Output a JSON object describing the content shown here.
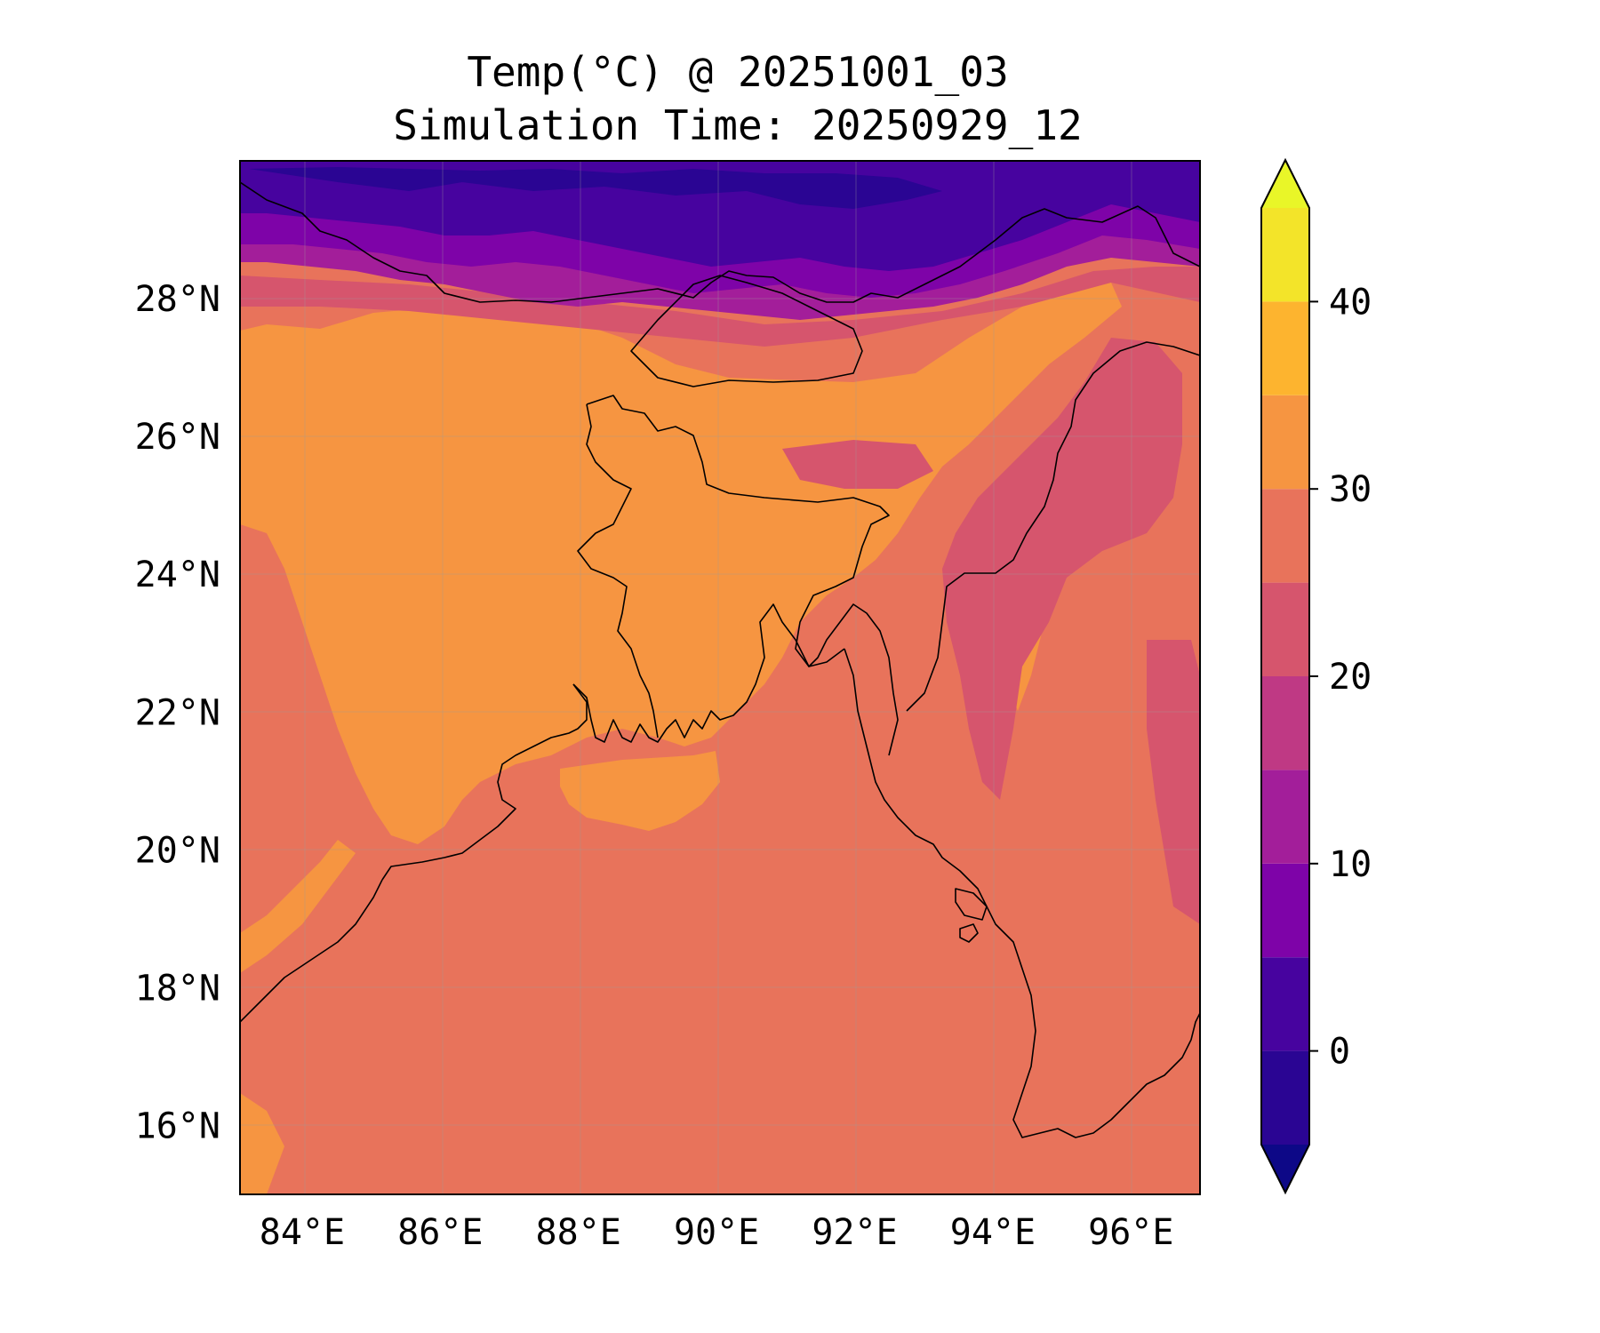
{
  "title": {
    "line1": "Temp(°C) @ 20251001_03",
    "line2": "Simulation Time: 20250929_12"
  },
  "map": {
    "variable": "Temp(°C)",
    "lon_range": [
      83.1,
      97.0
    ],
    "lat_range": [
      15.0,
      30.0
    ],
    "lon_ticks": [
      {
        "value": 84,
        "label": "84°E"
      },
      {
        "value": 86,
        "label": "86°E"
      },
      {
        "value": 88,
        "label": "88°E"
      },
      {
        "value": 90,
        "label": "90°E"
      },
      {
        "value": 92,
        "label": "92°E"
      },
      {
        "value": 94,
        "label": "94°E"
      },
      {
        "value": 96,
        "label": "96°E"
      }
    ],
    "lat_ticks": [
      {
        "value": 16,
        "label": "16°N"
      },
      {
        "value": 18,
        "label": "18°N"
      },
      {
        "value": 20,
        "label": "20°N"
      },
      {
        "value": 22,
        "label": "22°N"
      },
      {
        "value": 24,
        "label": "24°N"
      },
      {
        "value": 26,
        "label": "26°N"
      },
      {
        "value": 28,
        "label": "28°N"
      }
    ],
    "gridlines": true,
    "coastlines": true,
    "borders": true
  },
  "colorbar": {
    "placement": "right",
    "extend": "both",
    "range": [
      -5,
      45
    ],
    "under_color": "#0d0887",
    "over_color": "#e9f628",
    "levels": [
      {
        "from": -5,
        "to": 0,
        "color": "#2a0593"
      },
      {
        "from": 0,
        "to": 5,
        "color": "#47039f"
      },
      {
        "from": 5,
        "to": 10,
        "color": "#7e03a8"
      },
      {
        "from": 10,
        "to": 15,
        "color": "#a31e9a"
      },
      {
        "from": 15,
        "to": 20,
        "color": "#bf3984"
      },
      {
        "from": 20,
        "to": 25,
        "color": "#d6556d"
      },
      {
        "from": 25,
        "to": 30,
        "color": "#e8735b"
      },
      {
        "from": 30,
        "to": 35,
        "color": "#f69541"
      },
      {
        "from": 35,
        "to": 40,
        "color": "#fdb42f"
      },
      {
        "from": 40,
        "to": 45,
        "color": "#f3e429"
      }
    ],
    "ticks": [
      {
        "value": 0,
        "label": "0"
      },
      {
        "value": 10,
        "label": "10"
      },
      {
        "value": 20,
        "label": "20"
      },
      {
        "value": 30,
        "label": "30"
      },
      {
        "value": 40,
        "label": "40"
      }
    ]
  }
}
